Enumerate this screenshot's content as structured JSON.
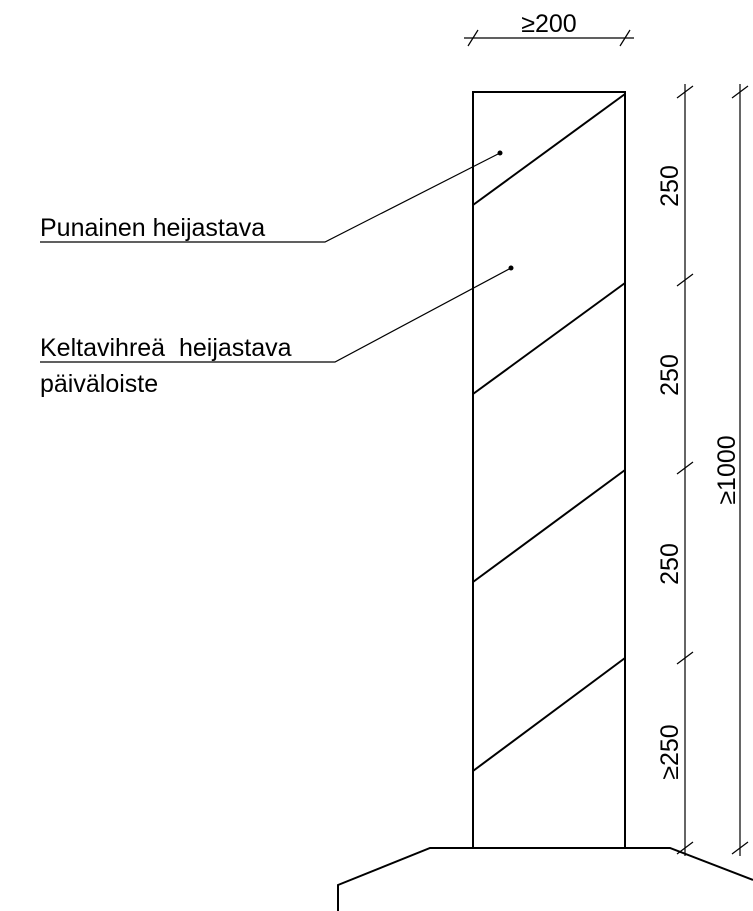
{
  "labels": {
    "red": "Punainen heijastava",
    "yellow_line1": "Keltavihreä  heijastava",
    "yellow_line2": "päiväloiste"
  },
  "dimensions": {
    "width": "≥200",
    "segments": [
      "250",
      "250",
      "250",
      "≥250"
    ],
    "total": "≥1000"
  }
}
